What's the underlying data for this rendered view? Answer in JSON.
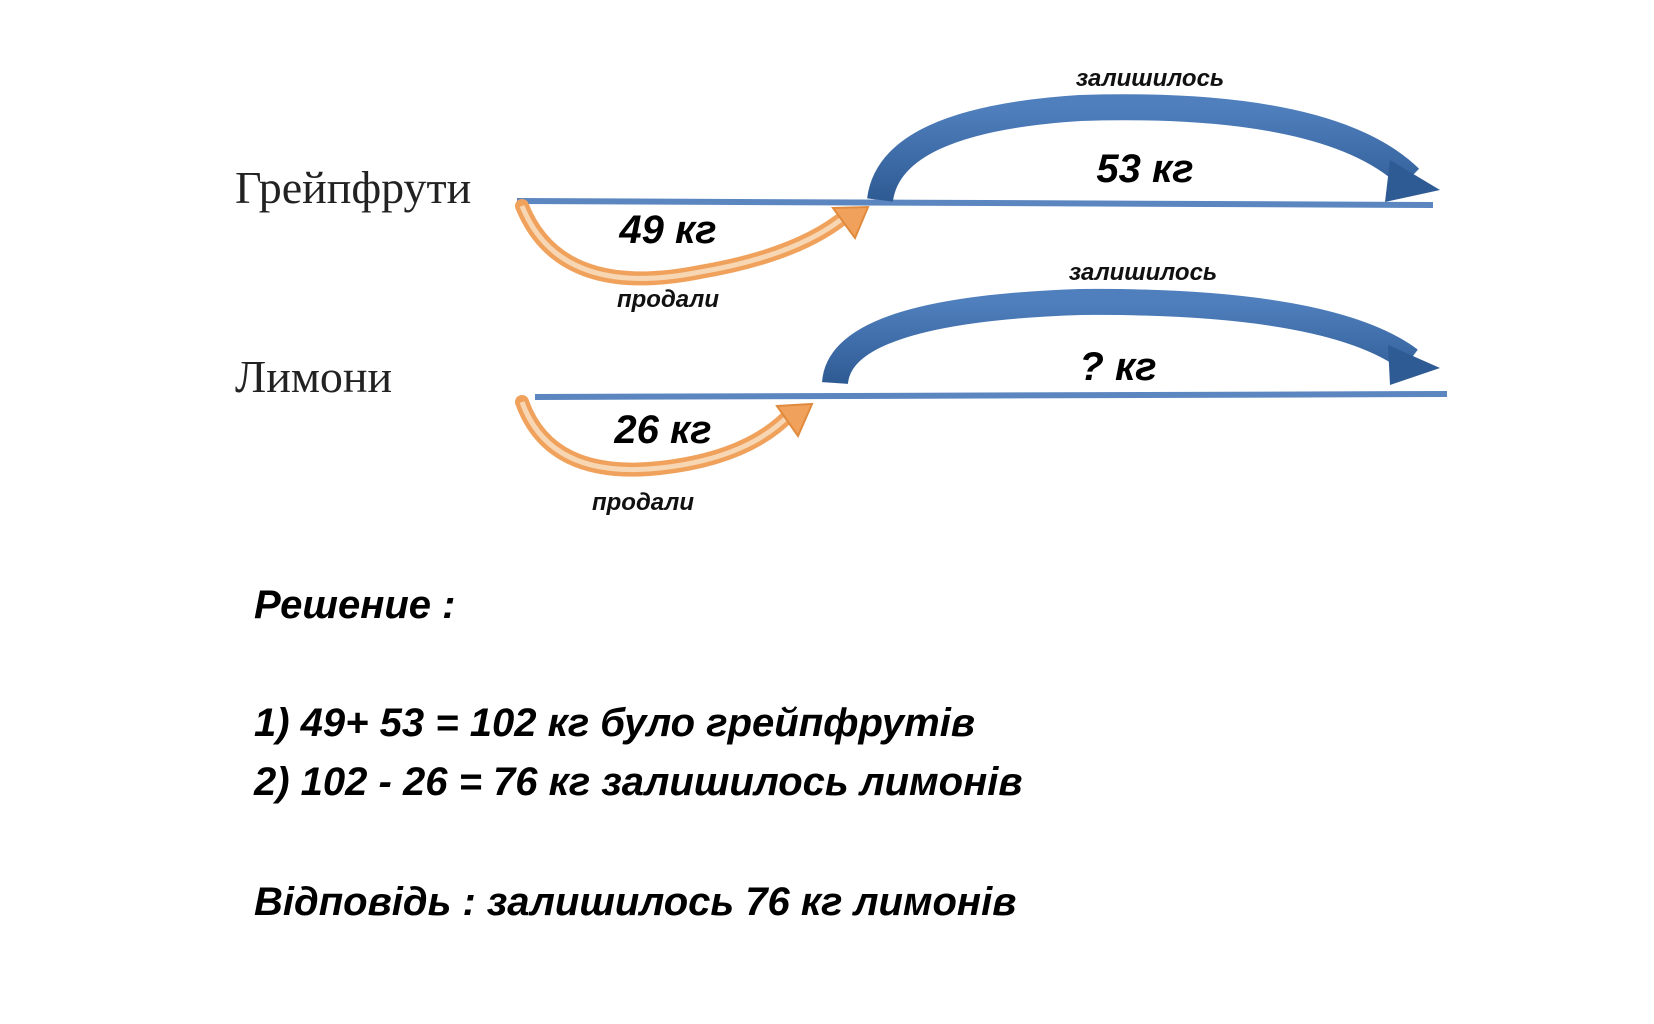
{
  "rows": [
    {
      "label": "Грейпфрути",
      "sold": "49 кг",
      "sold_caption": "продали",
      "remaining": "53 кг",
      "remaining_caption": "залишилось"
    },
    {
      "label": "Лимони",
      "sold": "26 кг",
      "sold_caption": "продали",
      "remaining": "? кг",
      "remaining_caption": "залишилось"
    }
  ],
  "solution": {
    "title": "Решение :",
    "steps": [
      "1) 49+ 53 = 102 кг було грейпфрутів",
      "2) 102 - 26 = 76 кг залишилось лимонів"
    ],
    "answer": "Відповідь : залишилось 76 кг лимонів"
  }
}
